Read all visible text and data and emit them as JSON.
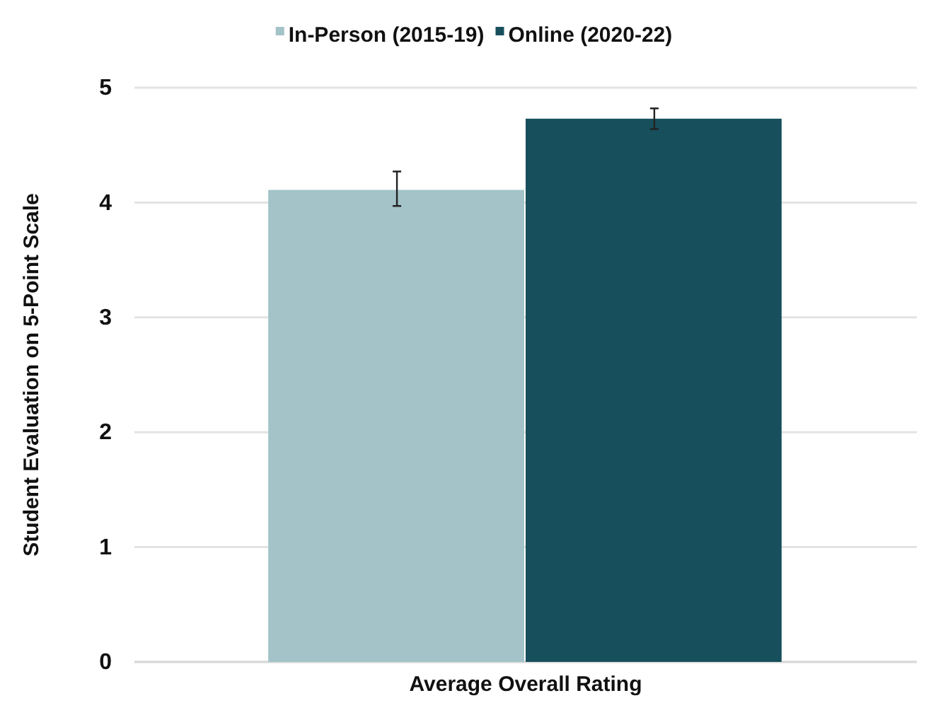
{
  "chart_data": {
    "type": "bar",
    "ylabel": "Student Evaluation on 5-Point Scale",
    "categories": [
      "Average Overall Rating"
    ],
    "series": [
      {
        "name": "In-Person (2015-19)",
        "color": "#a3c3c8",
        "values": [
          4.11
        ],
        "errors": [
          [
            3.97,
            4.27
          ]
        ]
      },
      {
        "name": "Online (2020-22)",
        "color": "#174f5c",
        "values": [
          4.73
        ],
        "errors": [
          [
            4.64,
            4.82
          ]
        ]
      }
    ],
    "ylim": [
      0,
      5
    ],
    "yticks": [
      0,
      1,
      2,
      3,
      4,
      5
    ],
    "grid": "y",
    "legend": "top"
  }
}
